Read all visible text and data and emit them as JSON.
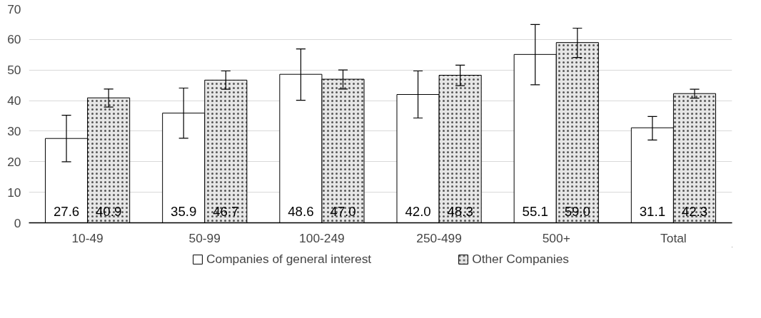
{
  "chart_data": {
    "type": "bar",
    "categories": [
      "10-49",
      "50-99",
      "100-249",
      "250-499",
      "500+",
      "Total"
    ],
    "series": [
      {
        "name": "Companies of general interest",
        "color": "#ffffff",
        "values": [
          27.6,
          35.9,
          48.6,
          42.0,
          55.1,
          31.1
        ],
        "value_labels": [
          "27.6",
          "35.9",
          "48.6",
          "42.0",
          "55.1",
          "31.1"
        ],
        "errors": [
          [
            20.0,
            35.2
          ],
          [
            27.7,
            44.1
          ],
          [
            40.1,
            56.9
          ],
          [
            34.3,
            49.7
          ],
          [
            45.2,
            64.9
          ],
          [
            27.1,
            34.8
          ]
        ]
      },
      {
        "name": "Other Companies",
        "color": "#e6e6e6",
        "values": [
          40.9,
          46.7,
          47.0,
          48.3,
          59.0,
          42.3
        ],
        "value_labels": [
          "40.9",
          "46.7",
          "47.0",
          "48.3",
          "59.0",
          "42.3"
        ],
        "errors": [
          [
            37.9,
            43.8
          ],
          [
            43.7,
            49.7
          ],
          [
            43.8,
            50.0
          ],
          [
            44.9,
            51.6
          ],
          [
            54.1,
            63.7
          ],
          [
            40.8,
            43.7
          ]
        ]
      }
    ],
    "ylim": [
      0,
      70
    ],
    "yticks": [
      0,
      10,
      20,
      30,
      40,
      50,
      60,
      70
    ],
    "grid": "y",
    "legend": "bottom"
  }
}
